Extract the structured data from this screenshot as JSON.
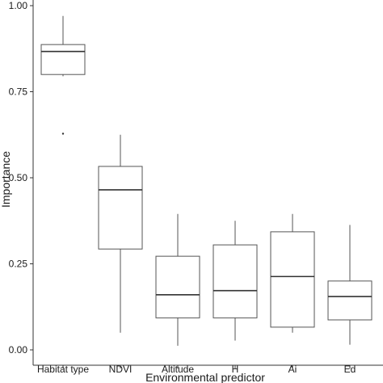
{
  "chart_data": {
    "type": "boxplot",
    "title": "",
    "xlabel": "Environmental predictor",
    "ylabel": "Importance",
    "ylim": [
      0,
      1.0
    ],
    "yticks": [
      "0.00",
      "0.25",
      "0.50",
      "0.75",
      "1.00"
    ],
    "ytick_values": [
      0,
      0.25,
      0.5,
      0.75,
      1.0
    ],
    "grid": false,
    "categories": [
      "Habitat type",
      "NDVI",
      "Altitude",
      "H",
      "Ai",
      "Ed"
    ],
    "boxes": [
      {
        "category": "Habitat type",
        "whisker_low": 0.795,
        "q1": 0.8,
        "median": 0.867,
        "q3": 0.887,
        "whisker_high": 0.97,
        "outliers": [
          0.628
        ]
      },
      {
        "category": "NDVI",
        "whisker_low": 0.05,
        "q1": 0.293,
        "median": 0.465,
        "q3": 0.533,
        "whisker_high": 0.625,
        "outliers": []
      },
      {
        "category": "Altitude",
        "whisker_low": 0.012,
        "q1": 0.093,
        "median": 0.16,
        "q3": 0.272,
        "whisker_high": 0.395,
        "outliers": []
      },
      {
        "category": "H",
        "whisker_low": 0.027,
        "q1": 0.093,
        "median": 0.172,
        "q3": 0.305,
        "whisker_high": 0.375,
        "outliers": []
      },
      {
        "category": "Ai",
        "whisker_low": 0.05,
        "q1": 0.066,
        "median": 0.213,
        "q3": 0.343,
        "whisker_high": 0.395,
        "outliers": []
      },
      {
        "category": "Ed",
        "whisker_low": 0.015,
        "q1": 0.087,
        "median": 0.155,
        "q3": 0.2,
        "whisker_high": 0.363,
        "outliers": []
      }
    ]
  }
}
